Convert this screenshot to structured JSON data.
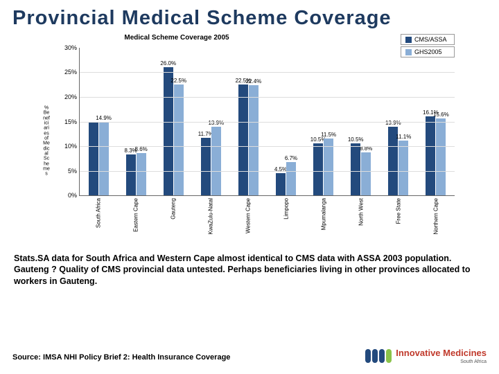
{
  "title": "Provincial Medical Scheme Coverage",
  "chart": {
    "type": "bar",
    "title": "Medical Scheme Coverage 2005",
    "ylabel": "% Beneficiaries of Medical Schemes",
    "ylim": [
      0,
      30
    ],
    "ytick_step": 5,
    "ytick_suffix": "%",
    "grid_color": "#dddddd",
    "series": [
      {
        "name": "CMS/ASSA",
        "color": "#234a7d"
      },
      {
        "name": "GHS2005",
        "color": "#8aaed6"
      }
    ],
    "categories": [
      "South Africa",
      "Eastern Cape",
      "Gauteng",
      "KwaZulu-Natal",
      "Western Cape",
      "Limpopo",
      "Mpumalanga",
      "North West",
      "Free State",
      "Northern Cape"
    ],
    "values": [
      [
        14.9,
        14.9
      ],
      [
        8.3,
        8.6
      ],
      [
        26.0,
        22.5
      ],
      [
        11.7,
        13.9
      ],
      [
        22.5,
        22.4
      ],
      [
        4.5,
        6.7
      ],
      [
        10.5,
        11.5
      ],
      [
        10.5,
        8.8
      ],
      [
        13.9,
        11.1
      ],
      [
        16.1,
        15.6
      ]
    ],
    "labels": [
      [
        "",
        "14.9%"
      ],
      [
        "8.3%",
        "8.6%"
      ],
      [
        "26.0%",
        "22.5%"
      ],
      [
        "11.7%",
        "13.9%"
      ],
      [
        "22.5%",
        "22.4%"
      ],
      [
        "4.5%",
        "6.7%"
      ],
      [
        "10.5%",
        "11.5%"
      ],
      [
        "10.5%",
        "8.8%"
      ],
      [
        "13.9%",
        "11.1%"
      ],
      [
        "16.1%",
        "15.6%"
      ]
    ]
  },
  "note": "Stats.SA data for South Africa and Western Cape almost identical to CMS data with ASSA 2003 population. Gauteng ? Quality of CMS provincial data untested. Perhaps beneficiaries living in other provinces allocated to workers in Gauteng.",
  "source": "Source: IMSA NHI Policy Brief 2: Health Insurance Coverage",
  "logo": {
    "pill_colors": [
      "#234a7d",
      "#234a7d",
      "#234a7d",
      "#8bc34a"
    ],
    "text": "Innovative Medicines",
    "text_color": "#c0392b",
    "sub": "South Africa"
  }
}
